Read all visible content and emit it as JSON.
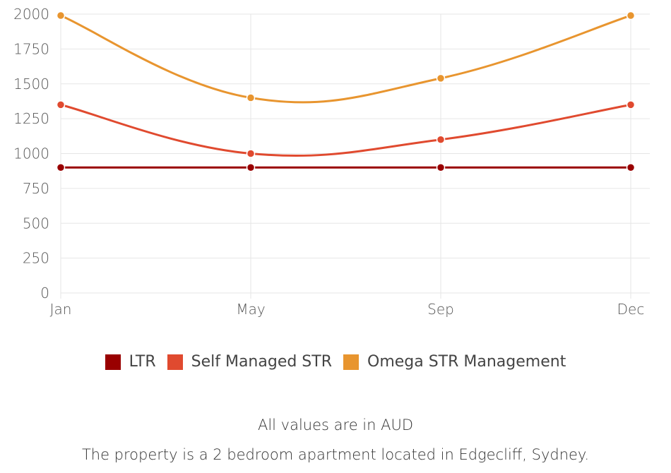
{
  "chart_data": {
    "type": "line",
    "categories": [
      "Jan",
      "May",
      "Sep",
      "Dec"
    ],
    "series": [
      {
        "name": "LTR",
        "color": "#990000",
        "values": [
          900,
          900,
          900,
          900
        ]
      },
      {
        "name": "Self Managed STR",
        "color": "#e04a2f",
        "values": [
          1350,
          1000,
          1100,
          1350
        ]
      },
      {
        "name": "Omega STR Management",
        "color": "#e8952f",
        "values": [
          1990,
          1400,
          1540,
          1990
        ]
      }
    ],
    "yticks": [
      0,
      250,
      500,
      750,
      1000,
      1250,
      1500,
      1750,
      2000
    ],
    "ylim": [
      0,
      2000
    ],
    "grid": true,
    "legend_position": "bottom",
    "curve": "smooth"
  },
  "notes": {
    "currency": "All values are in AUD",
    "property": "The property is a 2 bedroom apartment located in Edgecliff, Sydney."
  }
}
